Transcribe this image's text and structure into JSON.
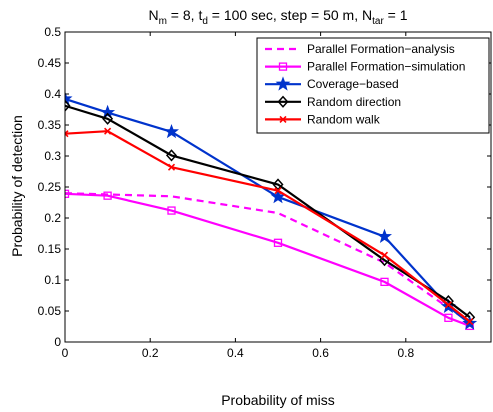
{
  "chart_data": {
    "type": "line",
    "title": {
      "prefix": "N",
      "sub1": "m",
      "part2": " = 8, t",
      "sub2": "d",
      "part3": " = 100 sec, step = 50 m, N",
      "sub3": "tar",
      "part4": " = 1"
    },
    "xlabel": "Probability of miss",
    "ylabel": "Probability of detection",
    "xlim": [
      0,
      1
    ],
    "ylim": [
      0,
      0.5
    ],
    "xticks": [
      "0",
      "0.2",
      "0.4",
      "0.6",
      "0.8"
    ],
    "xtick_values": [
      0,
      0.2,
      0.4,
      0.6,
      0.8
    ],
    "yticks": [
      "0",
      "0.05",
      "0.1",
      "0.15",
      "0.2",
      "0.25",
      "0.3",
      "0.35",
      "0.4",
      "0.45",
      "0.5"
    ],
    "ytick_values": [
      0,
      0.05,
      0.1,
      0.15,
      0.2,
      0.25,
      0.3,
      0.35,
      0.4,
      0.45,
      0.5
    ],
    "grid": false,
    "legend_position": "top-right",
    "series": [
      {
        "name": "Parallel Formation−analysis",
        "color": "#ff00ff",
        "line_style": "dashed",
        "marker": "none",
        "x": [
          0,
          0.1,
          0.25,
          0.5,
          0.75,
          0.9,
          0.95
        ],
        "y": [
          0.24,
          0.238,
          0.235,
          0.208,
          0.128,
          0.055,
          0.032
        ]
      },
      {
        "name": "Parallel Formation−simulation",
        "color": "#ff00ff",
        "line_style": "solid",
        "marker": "square",
        "x": [
          0,
          0.1,
          0.25,
          0.5,
          0.75,
          0.9,
          0.95
        ],
        "y": [
          0.239,
          0.236,
          0.212,
          0.16,
          0.097,
          0.039,
          0.026
        ]
      },
      {
        "name": "Coverage−based",
        "color": "#0033cc",
        "line_style": "solid",
        "marker": "star",
        "x": [
          0,
          0.1,
          0.25,
          0.5,
          0.75,
          0.9,
          0.95
        ],
        "y": [
          0.392,
          0.37,
          0.339,
          0.234,
          0.17,
          0.057,
          0.03
        ]
      },
      {
        "name": "Random direction",
        "color": "#000000",
        "line_style": "solid",
        "marker": "diamond",
        "x": [
          0,
          0.1,
          0.25,
          0.5,
          0.75,
          0.9,
          0.95
        ],
        "y": [
          0.381,
          0.36,
          0.301,
          0.254,
          0.132,
          0.066,
          0.04
        ]
      },
      {
        "name": "Random walk",
        "color": "#ff0000",
        "line_style": "solid",
        "marker": "x",
        "x": [
          0,
          0.1,
          0.25,
          0.5,
          0.75,
          0.9,
          0.95
        ],
        "y": [
          0.336,
          0.34,
          0.282,
          0.244,
          0.14,
          0.06,
          0.033
        ]
      }
    ]
  }
}
